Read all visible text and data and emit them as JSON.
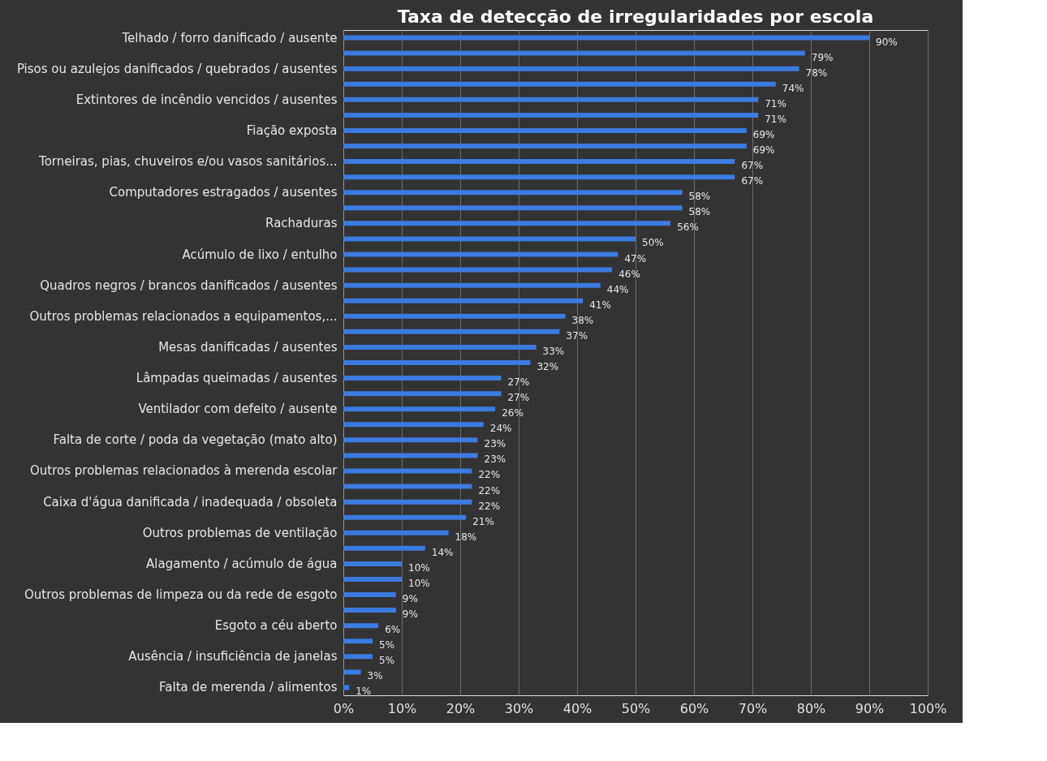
{
  "chart_data": {
    "type": "bar",
    "orientation": "horizontal",
    "title": "Taxa de detecção de irregularidades por escola",
    "categories": [
      "Telhado / forro danificado / ausente",
      null,
      "Pisos ou azulejos danificados / quebrados / ausentes",
      null,
      "Extintores de incêndio vencidos / ausentes",
      null,
      "Fiação exposta",
      null,
      "Torneiras, pias, chuveiros e/ou vasos sanitários...",
      null,
      "Computadores estragados / ausentes",
      null,
      "Rachaduras",
      null,
      "Acúmulo de lixo / entulho",
      null,
      "Quadros negros / brancos danificados / ausentes",
      null,
      "Outros problemas relacionados a equipamentos,...",
      null,
      "Mesas danificadas / ausentes",
      null,
      "Lâmpadas queimadas / ausentes",
      null,
      "Ventilador com defeito / ausente",
      null,
      "Falta de corte / poda da vegetação (mato alto)",
      null,
      "Outros problemas relacionados à merenda escolar",
      null,
      "Caixa d'água danificada / inadequada / obsoleta",
      null,
      "Outros problemas de ventilação",
      null,
      "Alagamento / acúmulo de água",
      null,
      "Outros problemas de limpeza ou da rede de esgoto",
      null,
      "Esgoto a céu aberto",
      null,
      "Ausência / insuficiência de janelas",
      null,
      "Falta de merenda / alimentos"
    ],
    "values": [
      90,
      79,
      78,
      74,
      71,
      71,
      69,
      69,
      67,
      67,
      58,
      58,
      56,
      50,
      47,
      46,
      44,
      41,
      38,
      37,
      33,
      32,
      27,
      27,
      26,
      24,
      23,
      23,
      22,
      22,
      22,
      21,
      18,
      14,
      10,
      10,
      9,
      9,
      6,
      5,
      5,
      3,
      1
    ],
    "value_labels": [
      "90%",
      "79%",
      "78%",
      "74%",
      "71%",
      "71%",
      "69%",
      "69%",
      "67%",
      "67%",
      "58%",
      "58%",
      "56%",
      "50%",
      "47%",
      "46%",
      "44%",
      "41%",
      "38%",
      "37%",
      "33%",
      "32%",
      "27%",
      "27%",
      "26%",
      "24%",
      "23%",
      "23%",
      "22%",
      "22%",
      "22%",
      "21%",
      "18%",
      "14%",
      "10%",
      "10%",
      "9%",
      "9%",
      "6%",
      "5%",
      "5%",
      "3%",
      "1%"
    ],
    "color": "#3c7be0",
    "xlim": [
      0,
      100
    ],
    "xticks": [
      {
        "value": 0,
        "label": "0%"
      },
      {
        "value": 10,
        "label": "10%"
      },
      {
        "value": 20,
        "label": "20%"
      },
      {
        "value": 30,
        "label": "30%"
      },
      {
        "value": 40,
        "label": "40%"
      },
      {
        "value": 50,
        "label": "50%"
      },
      {
        "value": 60,
        "label": "60%"
      },
      {
        "value": 70,
        "label": "70%"
      },
      {
        "value": 80,
        "label": "80%"
      },
      {
        "value": 90,
        "label": "90%"
      },
      {
        "value": 100,
        "label": "100%"
      }
    ],
    "grid": "x"
  }
}
